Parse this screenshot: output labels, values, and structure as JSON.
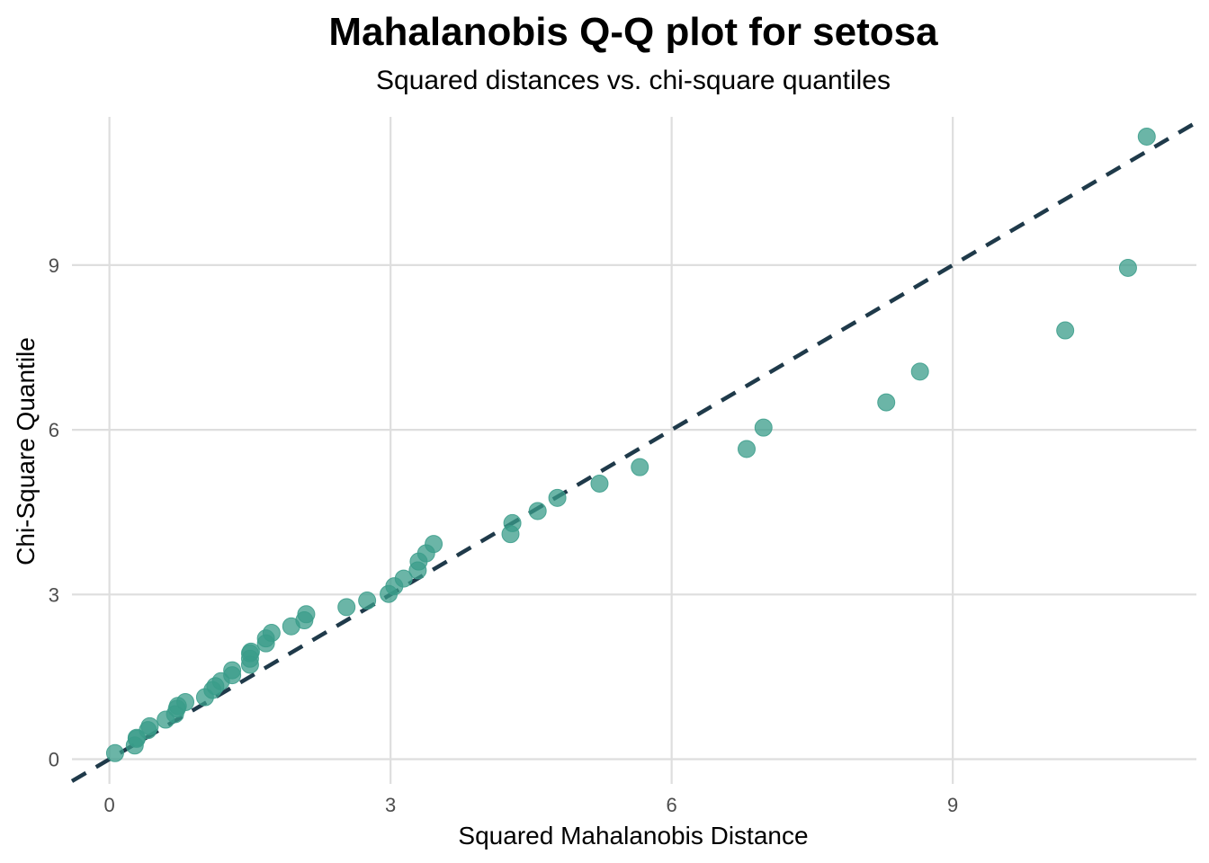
{
  "chart_data": {
    "type": "scatter",
    "title": "Mahalanobis Q-Q plot for setosa",
    "subtitle": "Squared distances vs. chi-square quantiles",
    "xlabel": "Squared Mahalanobis Distance",
    "ylabel": "Chi-Square Quantile",
    "xlim": [
      -0.4,
      11.6
    ],
    "ylim": [
      -0.45,
      11.7
    ],
    "xticks": [
      0,
      3,
      6,
      9
    ],
    "yticks": [
      0,
      3,
      6,
      9
    ],
    "grid": true,
    "point_color": "#3a9c8a",
    "reference_line": {
      "intercept": 0,
      "slope": 1,
      "style": "dashed",
      "color": "#1f3a4a"
    },
    "points": [
      {
        "x": 0.06,
        "y": 0.11
      },
      {
        "x": 0.27,
        "y": 0.25
      },
      {
        "x": 0.29,
        "y": 0.37
      },
      {
        "x": 0.29,
        "y": 0.39
      },
      {
        "x": 0.41,
        "y": 0.53
      },
      {
        "x": 0.43,
        "y": 0.6
      },
      {
        "x": 0.6,
        "y": 0.72
      },
      {
        "x": 0.7,
        "y": 0.82
      },
      {
        "x": 0.72,
        "y": 0.92
      },
      {
        "x": 0.73,
        "y": 0.97
      },
      {
        "x": 0.81,
        "y": 1.04
      },
      {
        "x": 1.02,
        "y": 1.13
      },
      {
        "x": 1.1,
        "y": 1.26
      },
      {
        "x": 1.13,
        "y": 1.33
      },
      {
        "x": 1.19,
        "y": 1.42
      },
      {
        "x": 1.31,
        "y": 1.53
      },
      {
        "x": 1.31,
        "y": 1.62
      },
      {
        "x": 1.5,
        "y": 1.72
      },
      {
        "x": 1.5,
        "y": 1.83
      },
      {
        "x": 1.5,
        "y": 1.93
      },
      {
        "x": 1.51,
        "y": 1.96
      },
      {
        "x": 1.67,
        "y": 2.11
      },
      {
        "x": 1.67,
        "y": 2.2
      },
      {
        "x": 1.73,
        "y": 2.3
      },
      {
        "x": 1.94,
        "y": 2.42
      },
      {
        "x": 2.08,
        "y": 2.53
      },
      {
        "x": 2.1,
        "y": 2.64
      },
      {
        "x": 2.53,
        "y": 2.77
      },
      {
        "x": 2.75,
        "y": 2.89
      },
      {
        "x": 2.98,
        "y": 3.01
      },
      {
        "x": 3.04,
        "y": 3.15
      },
      {
        "x": 3.14,
        "y": 3.29
      },
      {
        "x": 3.29,
        "y": 3.44
      },
      {
        "x": 3.3,
        "y": 3.6
      },
      {
        "x": 3.38,
        "y": 3.75
      },
      {
        "x": 3.46,
        "y": 3.92
      },
      {
        "x": 4.28,
        "y": 4.1
      },
      {
        "x": 4.3,
        "y": 4.3
      },
      {
        "x": 4.57,
        "y": 4.52
      },
      {
        "x": 4.78,
        "y": 4.76
      },
      {
        "x": 5.23,
        "y": 5.02
      },
      {
        "x": 5.66,
        "y": 5.32
      },
      {
        "x": 6.8,
        "y": 5.65
      },
      {
        "x": 6.98,
        "y": 6.04
      },
      {
        "x": 8.29,
        "y": 6.5
      },
      {
        "x": 8.65,
        "y": 7.06
      },
      {
        "x": 10.2,
        "y": 7.81
      },
      {
        "x": 10.87,
        "y": 8.95
      },
      {
        "x": 11.07,
        "y": 11.34
      }
    ]
  }
}
